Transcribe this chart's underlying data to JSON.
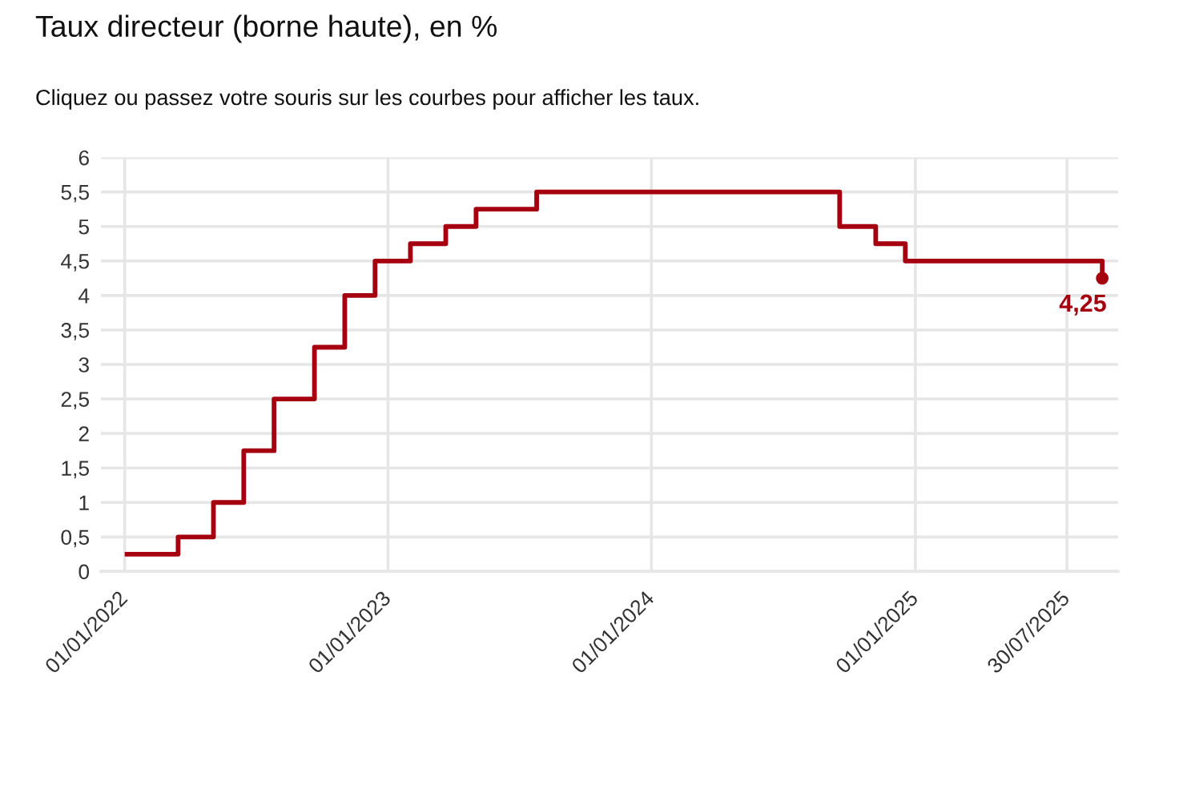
{
  "chart_data": {
    "type": "step",
    "title": "Taux directeur (borne haute), en %",
    "subtitle": "Cliquez ou passez votre souris sur les courbes pour afficher les taux.",
    "series": [
      {
        "color": "#a5000f",
        "x": [
          "2022-01-01",
          "2022-03-16",
          "2022-05-04",
          "2022-06-15",
          "2022-07-27",
          "2022-09-21",
          "2022-11-02",
          "2022-12-14",
          "2023-02-01",
          "2023-03-22",
          "2023-05-03",
          "2023-07-26",
          "2024-09-18",
          "2024-11-07",
          "2024-12-18",
          "2025-09-17"
        ],
        "values": [
          0.25,
          0.5,
          1,
          1.75,
          2.5,
          3.25,
          4,
          4.5,
          4.75,
          5,
          5.25,
          5.5,
          5,
          4.75,
          4.5,
          4.25
        ]
      },
      {
        "type": "scatter",
        "marker": "circle",
        "color": "#a5000f",
        "x": [
          "2025-09-17"
        ],
        "values": [
          4.25
        ],
        "value_labels": [
          "4,25"
        ]
      }
    ],
    "xlim": [
      "2021-11-29",
      "2025-10-09"
    ],
    "xticks": [
      {
        "value": "2022-01-01",
        "label": "01/01/2022"
      },
      {
        "value": "2023-01-01",
        "label": "01/01/2023"
      },
      {
        "value": "2024-01-01",
        "label": "01/01/2024"
      },
      {
        "value": "2025-01-01",
        "label": "01/01/2025"
      },
      {
        "value": "2025-07-30",
        "label": "30/07/2025"
      }
    ],
    "ylim": [
      0,
      6
    ],
    "yticks": [
      0,
      {
        "value": 0.5,
        "label": "0,5"
      },
      1,
      {
        "value": 1.5,
        "label": "1,5"
      },
      2,
      {
        "value": 2.5,
        "label": "2,5"
      },
      3,
      {
        "value": 3.5,
        "label": "3,5"
      },
      4,
      {
        "value": 4.5,
        "label": "4,5"
      },
      5,
      {
        "value": 5.5,
        "label": "5,5"
      },
      6
    ],
    "grid": true
  }
}
